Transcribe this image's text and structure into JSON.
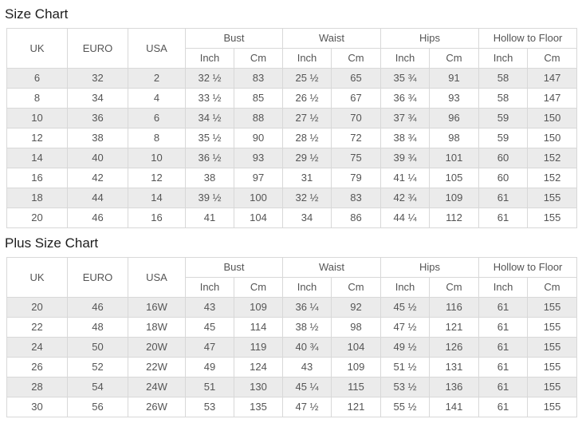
{
  "colors": {
    "stripe_row": "#ebebeb",
    "cell_border": "#d8d8d8",
    "table_text": "#555555",
    "title_text": "#1d1d1d"
  },
  "chart_data": [
    {
      "type": "table",
      "title": "Size Chart",
      "main_columns": [
        "UK",
        "EURO",
        "USA"
      ],
      "column_groups": [
        "Bust",
        "Waist",
        "Hips",
        "Hollow to Floor"
      ],
      "sub_columns": [
        "Inch",
        "Cm"
      ],
      "rows": [
        [
          "6",
          "32",
          "2",
          "32 ½",
          "83",
          "25 ½",
          "65",
          "35 ¾",
          "91",
          "58",
          "147"
        ],
        [
          "8",
          "34",
          "4",
          "33 ½",
          "85",
          "26 ½",
          "67",
          "36 ¾",
          "93",
          "58",
          "147"
        ],
        [
          "10",
          "36",
          "6",
          "34 ½",
          "88",
          "27 ½",
          "70",
          "37 ¾",
          "96",
          "59",
          "150"
        ],
        [
          "12",
          "38",
          "8",
          "35 ½",
          "90",
          "28 ½",
          "72",
          "38 ¾",
          "98",
          "59",
          "150"
        ],
        [
          "14",
          "40",
          "10",
          "36 ½",
          "93",
          "29 ½",
          "75",
          "39 ¾",
          "101",
          "60",
          "152"
        ],
        [
          "16",
          "42",
          "12",
          "38",
          "97",
          "31",
          "79",
          "41 ¼",
          "105",
          "60",
          "152"
        ],
        [
          "18",
          "44",
          "14",
          "39 ½",
          "100",
          "32 ½",
          "83",
          "42 ¾",
          "109",
          "61",
          "155"
        ],
        [
          "20",
          "46",
          "16",
          "41",
          "104",
          "34",
          "86",
          "44 ¼",
          "112",
          "61",
          "155"
        ]
      ]
    },
    {
      "type": "table",
      "title": "Plus Size Chart",
      "main_columns": [
        "UK",
        "EURO",
        "USA"
      ],
      "column_groups": [
        "Bust",
        "Waist",
        "Hips",
        "Hollow to Floor"
      ],
      "sub_columns": [
        "Inch",
        "Cm"
      ],
      "rows": [
        [
          "20",
          "46",
          "16W",
          "43",
          "109",
          "36 ¼",
          "92",
          "45 ½",
          "116",
          "61",
          "155"
        ],
        [
          "22",
          "48",
          "18W",
          "45",
          "114",
          "38 ½",
          "98",
          "47 ½",
          "121",
          "61",
          "155"
        ],
        [
          "24",
          "50",
          "20W",
          "47",
          "119",
          "40 ¾",
          "104",
          "49 ½",
          "126",
          "61",
          "155"
        ],
        [
          "26",
          "52",
          "22W",
          "49",
          "124",
          "43",
          "109",
          "51 ½",
          "131",
          "61",
          "155"
        ],
        [
          "28",
          "54",
          "24W",
          "51",
          "130",
          "45 ¼",
          "115",
          "53 ½",
          "136",
          "61",
          "155"
        ],
        [
          "30",
          "56",
          "26W",
          "53",
          "135",
          "47 ½",
          "121",
          "55 ½",
          "141",
          "61",
          "155"
        ]
      ]
    }
  ]
}
